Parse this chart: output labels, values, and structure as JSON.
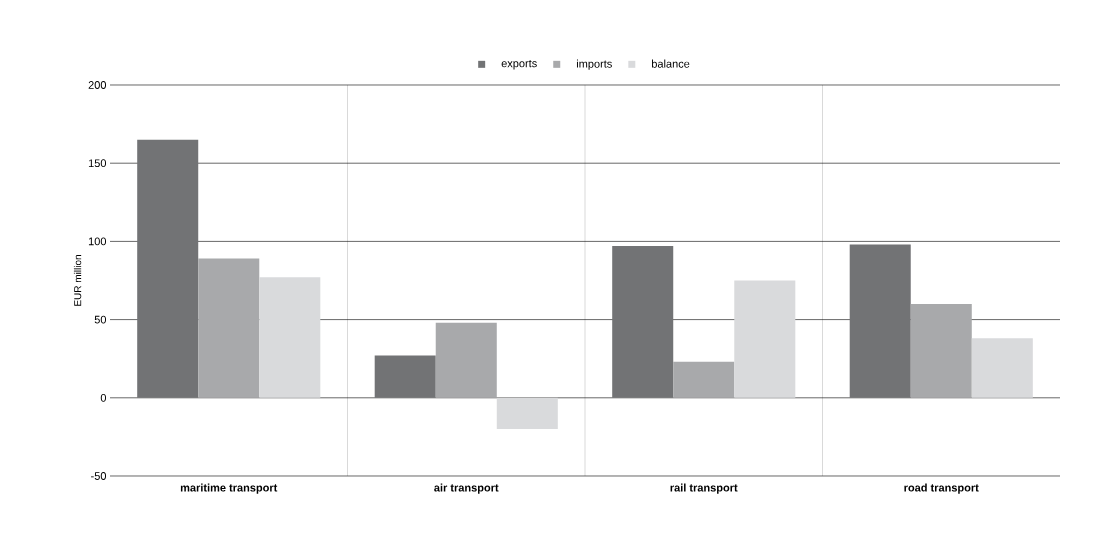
{
  "chart_data": {
    "type": "bar",
    "ylabel": "EUR million",
    "categories": [
      "maritime transport",
      "air transport",
      "rail transport",
      "road transport"
    ],
    "series": [
      {
        "name": "exports",
        "color": "#727375",
        "values": [
          165,
          27,
          97,
          98
        ]
      },
      {
        "name": "imports",
        "color": "#a8a9ab",
        "values": [
          89,
          48,
          23,
          60
        ]
      },
      {
        "name": "balance",
        "color": "#d9dadc",
        "values": [
          77,
          -20,
          75,
          38
        ]
      }
    ],
    "ylim": [
      -50,
      200
    ],
    "yticks": [
      -50,
      0,
      50,
      100,
      150,
      200
    ],
    "grid": true,
    "legend": "top"
  }
}
